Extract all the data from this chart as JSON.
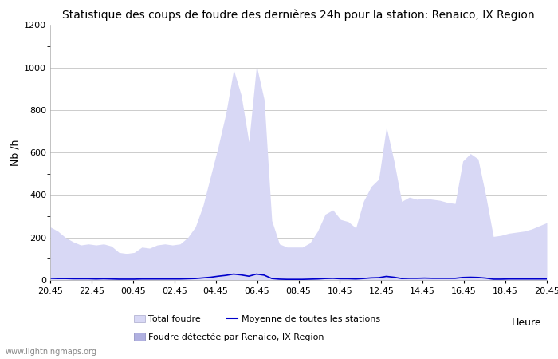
{
  "title": "Statistique des coups de foudre des dernières 24h pour la station: Renaico, IX Region",
  "xlabel": "Heure",
  "ylabel": "Nb /h",
  "ylim": [
    0,
    1200
  ],
  "yticks": [
    0,
    200,
    400,
    600,
    800,
    1000,
    1200
  ],
  "xtick_labels": [
    "20:45",
    "22:45",
    "00:45",
    "02:45",
    "04:45",
    "06:45",
    "08:45",
    "10:45",
    "12:45",
    "14:45",
    "16:45",
    "18:45",
    "20:45"
  ],
  "background_color": "#ffffff",
  "plot_bg_color": "#ffffff",
  "grid_color": "#cccccc",
  "area_color_total": "#d8d8f5",
  "line_color": "#0000cc",
  "watermark": "www.lightningmaps.org",
  "total_foudre": [
    250,
    230,
    200,
    180,
    165,
    170,
    165,
    170,
    160,
    130,
    125,
    130,
    155,
    150,
    165,
    170,
    165,
    170,
    200,
    250,
    350,
    490,
    630,
    785,
    990,
    870,
    650,
    1010,
    850,
    280,
    170,
    155,
    155,
    155,
    175,
    230,
    310,
    330,
    285,
    275,
    245,
    370,
    440,
    475,
    720,
    560,
    370,
    390,
    380,
    385,
    380,
    375,
    365,
    360,
    560,
    595,
    570,
    400,
    205,
    210,
    220,
    225,
    230,
    240,
    255,
    270
  ],
  "mean_line": [
    8,
    7,
    7,
    6,
    6,
    6,
    5,
    6,
    5,
    4,
    4,
    4,
    5,
    5,
    5,
    5,
    5,
    5,
    6,
    7,
    10,
    13,
    18,
    22,
    28,
    24,
    18,
    28,
    23,
    7,
    4,
    3,
    3,
    3,
    4,
    5,
    7,
    8,
    6,
    6,
    5,
    7,
    10,
    11,
    17,
    13,
    7,
    8,
    8,
    9,
    8,
    8,
    8,
    8,
    12,
    13,
    12,
    9,
    4,
    4,
    5,
    5,
    5,
    5,
    5,
    5
  ],
  "legend_total": "Total foudre",
  "legend_mean": "Moyenne de toutes les stations",
  "legend_detected": "Foudre détectée par Renaico, IX Region"
}
